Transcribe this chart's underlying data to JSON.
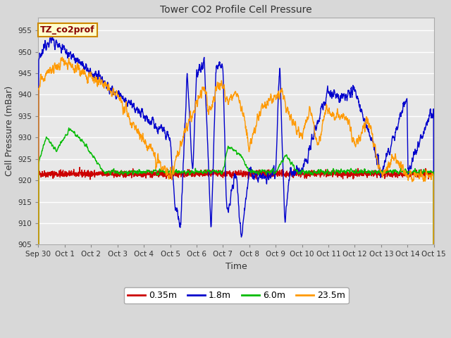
{
  "title": "Tower CO2 Profile Cell Pressure",
  "xlabel": "Time",
  "ylabel": "Cell Pressure (mBar)",
  "ylim": [
    905,
    958
  ],
  "yticks": [
    905,
    910,
    915,
    920,
    925,
    930,
    935,
    940,
    945,
    950,
    955
  ],
  "fig_bg_color": "#d8d8d8",
  "plot_bg_color": "#e8e8e8",
  "grid_color": "#ffffff",
  "legend_label": "TZ_co2prof",
  "legend_box_color": "#ffffcc",
  "legend_box_edge": "#cc8800",
  "series": [
    {
      "label": "0.35m",
      "color": "#cc0000",
      "lw": 1.0
    },
    {
      "label": "1.8m",
      "color": "#0000cc",
      "lw": 1.0
    },
    {
      "label": "6.0m",
      "color": "#00bb00",
      "lw": 1.0
    },
    {
      "label": "23.5m",
      "color": "#ff9900",
      "lw": 1.0
    }
  ],
  "n_points": 2000,
  "x_start": 0,
  "x_end": 15.0,
  "xtick_positions": [
    0,
    1,
    2,
    3,
    4,
    5,
    6,
    7,
    8,
    9,
    10,
    11,
    12,
    13,
    14,
    15
  ],
  "xtick_labels": [
    "Sep 30",
    "Oct 1",
    "Oct 2",
    "Oct 3",
    "Oct 4",
    "Oct 5",
    "Oct 6",
    "Oct 7",
    "Oct 8",
    "Oct 9",
    "Oct 10",
    "Oct 11",
    "Oct 12",
    "Oct 13",
    "Oct 14",
    "Oct 15"
  ]
}
